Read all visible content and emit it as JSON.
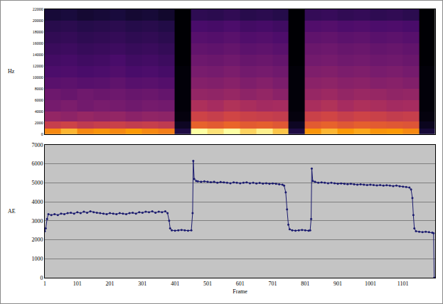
{
  "chart_data": [
    {
      "type": "heatmap",
      "ylabel": "Hz",
      "x": [
        25,
        75,
        125,
        175,
        225,
        275,
        325,
        375,
        425,
        475,
        525,
        575,
        625,
        675,
        725,
        775,
        825,
        875,
        925,
        975,
        1025,
        1075,
        1125,
        1175
      ],
      "y": [
        500,
        1500,
        3000,
        5000,
        7000,
        9000,
        11000,
        13000,
        15000,
        17000,
        19000,
        21000
      ],
      "cells": [
        [
          9,
          9.5,
          9,
          9.2,
          9,
          9.3,
          9,
          8.8,
          1.5,
          10,
          9.8,
          10,
          9.7,
          9.9,
          9.6,
          1.5,
          9.2,
          9.5,
          9.3,
          9.4,
          9.2,
          9.3,
          9.0,
          1.2
        ],
        [
          7,
          7.2,
          6.8,
          7,
          7.1,
          6.9,
          7,
          6.8,
          0.8,
          8.2,
          8,
          8.3,
          8,
          8.1,
          7.9,
          0.8,
          8,
          8.2,
          7.9,
          8.1,
          8,
          7.9,
          7.8,
          0.7
        ],
        [
          5.5,
          5.3,
          5.6,
          5.4,
          5.5,
          5.2,
          5.4,
          5.3,
          0.4,
          7.2,
          7,
          7.3,
          7.1,
          7,
          6.9,
          0.4,
          7.1,
          7.3,
          7,
          7.2,
          7.1,
          6.9,
          7,
          0.4
        ],
        [
          4.5,
          4.7,
          4.4,
          4.6,
          4.5,
          4.3,
          4.5,
          4.4,
          0.3,
          6.3,
          6.1,
          6.4,
          6.2,
          6,
          6.1,
          0.3,
          6.2,
          6.4,
          6.1,
          6.3,
          6.2,
          6,
          6.1,
          0.3
        ],
        [
          4.2,
          4,
          4.3,
          4.1,
          4.2,
          4,
          4.1,
          3.9,
          0.3,
          5.5,
          5.4,
          5.6,
          5.3,
          5.5,
          5.2,
          0.3,
          5.6,
          5.8,
          5.5,
          5.7,
          5.6,
          5.4,
          5.5,
          0.3
        ],
        [
          3.5,
          3.6,
          3.4,
          3.5,
          3.7,
          3.4,
          3.5,
          3.3,
          0.3,
          5,
          4.9,
          5.1,
          4.8,
          5,
          4.7,
          0.3,
          5.2,
          5.3,
          5.1,
          5.2,
          5,
          5.1,
          4.9,
          0.3
        ],
        [
          3,
          3.1,
          2.9,
          3,
          3.2,
          2.9,
          3,
          2.8,
          0.3,
          4.6,
          4.5,
          4.7,
          4.4,
          4.5,
          4.3,
          0.3,
          4.8,
          4.9,
          4.7,
          4.8,
          4.6,
          4.7,
          4.5,
          0.3
        ],
        [
          2.7,
          2.8,
          2.6,
          2.7,
          2.9,
          2.6,
          2.7,
          2.5,
          0.2,
          4.2,
          4.1,
          4.3,
          4,
          4.1,
          3.9,
          0.2,
          4.4,
          4.5,
          4.3,
          4.4,
          4.2,
          4.3,
          4.1,
          0.2
        ],
        [
          2.4,
          2.5,
          2.3,
          2.4,
          2.5,
          2.3,
          2.4,
          2.2,
          0.2,
          3.8,
          3.7,
          3.9,
          3.6,
          3.7,
          3.5,
          0.2,
          4.1,
          4.2,
          4,
          4.1,
          3.9,
          4,
          3.8,
          0.2
        ],
        [
          2.1,
          2.2,
          2,
          2.1,
          2.2,
          2,
          2.1,
          1.9,
          0.2,
          3.4,
          3.3,
          3.5,
          3.2,
          3.3,
          3.1,
          0.2,
          3.7,
          3.8,
          3.6,
          3.7,
          3.5,
          3.6,
          3.4,
          0.2
        ],
        [
          1.8,
          1.9,
          1.7,
          1.8,
          1.9,
          1.7,
          1.8,
          1.6,
          0.2,
          2.9,
          2.8,
          3,
          2.7,
          2.8,
          2.6,
          0.2,
          3.2,
          3.3,
          3.1,
          3.2,
          3,
          3.1,
          2.9,
          0.2
        ],
        [
          1.2,
          1.3,
          1.1,
          1.2,
          1.3,
          1.1,
          1.2,
          1,
          0.2,
          2,
          1.9,
          2.1,
          1.8,
          1.9,
          1.7,
          0.2,
          2.2,
          2.3,
          2.1,
          2.2,
          2,
          2.1,
          1.9,
          0.2
        ]
      ],
      "xlim": [
        1,
        1200
      ],
      "ylim": [
        0,
        22000
      ],
      "yticks": [
        0,
        2000,
        4000,
        6000,
        8000,
        10000,
        12000,
        14000,
        16000,
        18000,
        20000,
        22000
      ],
      "tick_labels": "y"
    },
    {
      "type": "line",
      "ylabel": "AE",
      "xlabel": "Frame",
      "color": "#1a1a6e",
      "marker": "circle",
      "line_style": "solid",
      "grid": "y",
      "x": [
        1,
        4,
        8,
        12,
        21,
        31,
        41,
        51,
        61,
        71,
        81,
        91,
        101,
        111,
        121,
        131,
        141,
        151,
        161,
        171,
        181,
        191,
        201,
        211,
        221,
        231,
        241,
        251,
        261,
        271,
        281,
        291,
        301,
        311,
        321,
        331,
        341,
        351,
        361,
        371,
        378,
        383,
        386,
        391,
        401,
        411,
        421,
        431,
        441,
        451,
        455,
        457,
        460,
        466,
        471,
        481,
        491,
        501,
        511,
        521,
        531,
        541,
        551,
        561,
        571,
        581,
        591,
        601,
        611,
        621,
        631,
        641,
        651,
        661,
        671,
        681,
        691,
        701,
        711,
        721,
        731,
        736,
        741,
        745,
        749,
        753,
        761,
        771,
        781,
        791,
        801,
        811,
        816,
        819,
        821,
        824,
        831,
        841,
        851,
        861,
        871,
        881,
        891,
        901,
        911,
        921,
        931,
        941,
        951,
        961,
        971,
        981,
        991,
        1001,
        1011,
        1021,
        1031,
        1041,
        1051,
        1061,
        1071,
        1081,
        1091,
        1101,
        1111,
        1121,
        1126,
        1130,
        1133,
        1136,
        1141,
        1151,
        1161,
        1171,
        1181,
        1191,
        1195,
        1197
      ],
      "values": [
        2450,
        2600,
        3100,
        3350,
        3300,
        3350,
        3300,
        3380,
        3350,
        3400,
        3420,
        3380,
        3450,
        3400,
        3480,
        3420,
        3500,
        3450,
        3420,
        3400,
        3380,
        3350,
        3400,
        3380,
        3350,
        3400,
        3380,
        3350,
        3400,
        3420,
        3380,
        3450,
        3420,
        3480,
        3450,
        3500,
        3420,
        3480,
        3450,
        3500,
        3400,
        3000,
        2600,
        2500,
        2480,
        2500,
        2520,
        2500,
        2480,
        2500,
        3400,
        6150,
        5200,
        5100,
        5080,
        5050,
        5080,
        5050,
        5030,
        5050,
        5000,
        5040,
        5020,
        5000,
        4980,
        5020,
        5000,
        4980,
        5000,
        5020,
        4980,
        5000,
        4970,
        4990,
        4960,
        4980,
        4950,
        4970,
        4950,
        4920,
        4900,
        4850,
        4500,
        3600,
        2800,
        2550,
        2500,
        2480,
        2500,
        2520,
        2500,
        2480,
        2500,
        3100,
        5750,
        5100,
        5050,
        5000,
        5020,
        5000,
        4980,
        5000,
        4980,
        4950,
        4970,
        4950,
        4930,
        4950,
        4920,
        4900,
        4920,
        4900,
        4880,
        4900,
        4880,
        4860,
        4880,
        4850,
        4870,
        4850,
        4830,
        4850,
        4820,
        4800,
        4780,
        4750,
        4650,
        4200,
        3300,
        2600,
        2450,
        2420,
        2400,
        2420,
        2400,
        2380,
        2350,
        0
      ],
      "xlim": [
        1,
        1200
      ],
      "xticks": [
        1,
        101,
        201,
        301,
        401,
        501,
        601,
        701,
        801,
        901,
        1001,
        1101
      ],
      "ylim": [
        0,
        7000
      ],
      "yticks": [
        0,
        1000,
        2000,
        3000,
        4000,
        5000,
        6000,
        7000
      ]
    }
  ]
}
